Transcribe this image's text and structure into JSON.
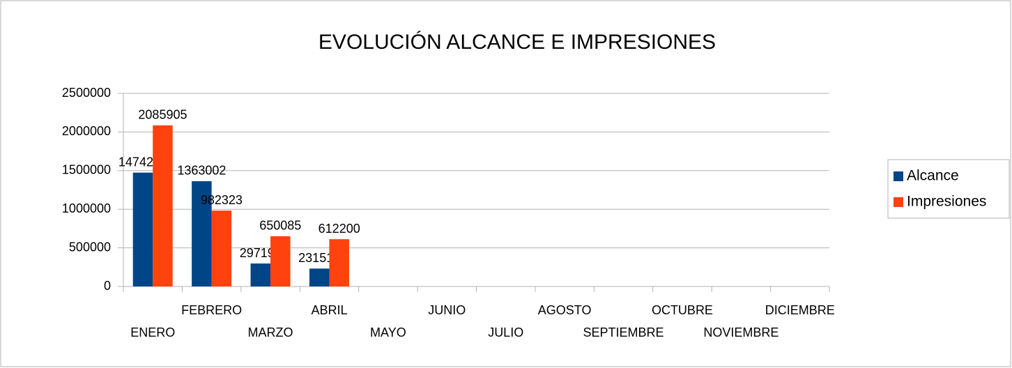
{
  "chart_data": {
    "type": "bar",
    "title": "EVOLUCIÓN ALCANCE E IMPRESIONES",
    "categories": [
      "ENERO",
      "FEBRERO",
      "MARZO",
      "ABRIL",
      "MAYO",
      "JUNIO",
      "JULIO",
      "AGOSTO",
      "SEPTIEMBRE",
      "OCTUBRE",
      "NOVIEMBRE",
      "DICIEMBRE"
    ],
    "series": [
      {
        "name": "Alcance",
        "color": "#004586",
        "values": [
          1474257,
          1363002,
          297191,
          231517,
          null,
          null,
          null,
          null,
          null,
          null,
          null,
          null
        ]
      },
      {
        "name": "Impresiones",
        "color": "#ff420e",
        "values": [
          2085905,
          982323,
          650085,
          612200,
          null,
          null,
          null,
          null,
          null,
          null,
          null,
          null
        ]
      }
    ],
    "ylim": [
      0,
      2500000
    ],
    "yticks": [
      0,
      500000,
      1000000,
      1500000,
      2000000,
      2500000
    ],
    "grid": true,
    "legend": "right"
  }
}
